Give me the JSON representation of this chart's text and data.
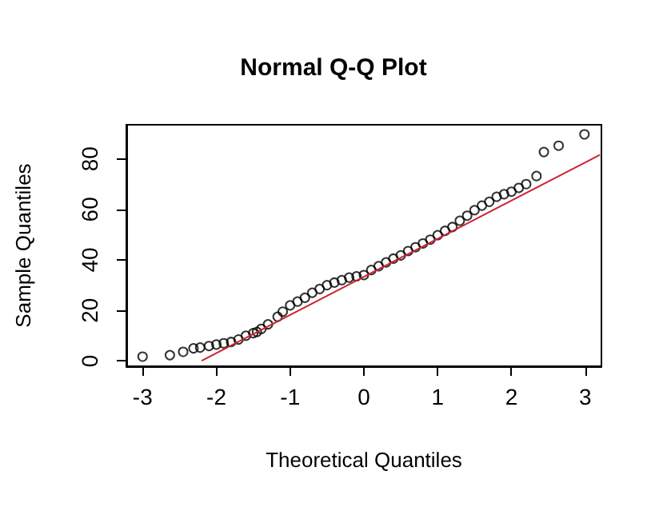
{
  "chart_data": {
    "type": "scatter",
    "title": "Normal Q-Q Plot",
    "xlabel": "Theoretical Quantiles",
    "ylabel": "Sample Quantiles",
    "xlim": [
      -3.22,
      3.22
    ],
    "ylim": [
      -2.1,
      93.5
    ],
    "xticks": [
      -3,
      -2,
      -1,
      0,
      1,
      2,
      3
    ],
    "yticks": [
      0,
      20,
      40,
      60,
      80
    ],
    "grid": false,
    "series": [
      {
        "marker": "circle",
        "color": "#000000",
        "x": [
          -3,
          -2.63,
          -2.45,
          -2.31,
          -2.22,
          -2.1,
          -2.0,
          -1.9,
          -1.8,
          -1.7,
          -1.6,
          -1.5,
          -1.45,
          -1.39,
          -1.3,
          -1.17,
          -1.1,
          -1.0,
          -0.9,
          -0.8,
          -0.7,
          -0.6,
          -0.5,
          -0.4,
          -0.3,
          -0.2,
          -0.1,
          0,
          0.1,
          0.2,
          0.3,
          0.4,
          0.5,
          0.6,
          0.7,
          0.8,
          0.9,
          1.0,
          1.1,
          1.2,
          1.3,
          1.4,
          1.5,
          1.6,
          1.7,
          1.8,
          1.9,
          2.0,
          2.1,
          2.2,
          2.34,
          2.44,
          2.64,
          2.99
        ],
        "values": [
          1.7,
          2.3,
          3.6,
          5,
          5.3,
          5.9,
          6.5,
          7,
          7.5,
          8.5,
          10,
          11,
          11.5,
          12.7,
          14.5,
          17.5,
          19.5,
          22,
          23.5,
          25,
          27,
          28.5,
          30,
          31,
          32,
          33,
          33.5,
          34,
          36,
          37.5,
          39,
          40.5,
          41.8,
          43.5,
          45,
          46.5,
          48,
          49.8,
          51.5,
          53,
          55.5,
          57.5,
          59.7,
          61.5,
          63,
          65,
          66,
          67,
          68.5,
          70,
          73.2,
          82.7,
          85.2,
          89.7
        ]
      },
      {
        "type": "line",
        "color": "#cc2233",
        "x": [
          -2.2,
          3.2
        ],
        "values": [
          0.1,
          81.6
        ]
      }
    ]
  }
}
